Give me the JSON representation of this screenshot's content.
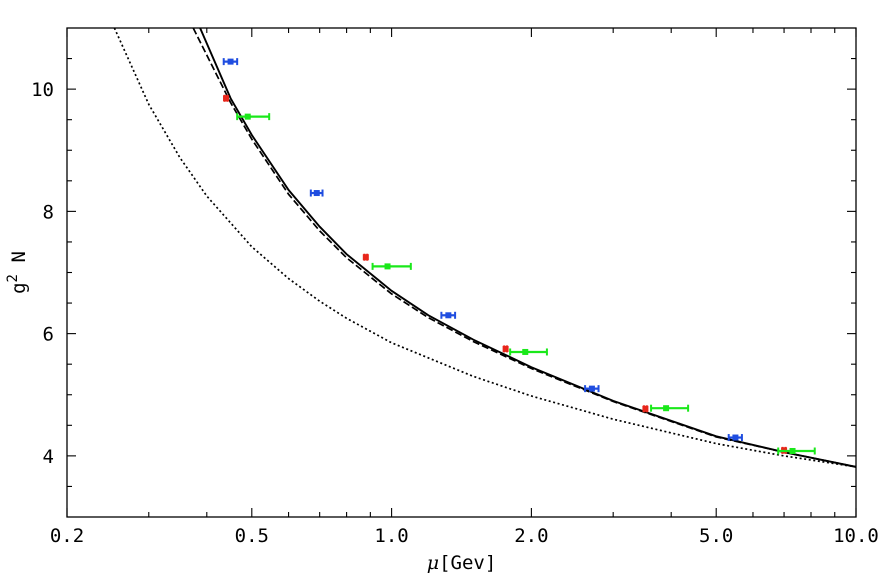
{
  "chart_data": {
    "type": "scatter",
    "title": "",
    "xlabel": {
      "symbol": "μ",
      "bracket_open": "[",
      "unit": "Gev",
      "bracket_close": "]"
    },
    "ylabel": {
      "base": "g",
      "superscript": "2",
      "tail": " N"
    },
    "x_scale": "log",
    "xlim": [
      0.2,
      10.0
    ],
    "ylim": [
      3.0,
      11.0
    ],
    "grid": false,
    "x_ticks": [
      {
        "value": 0.2,
        "label": "0.2"
      },
      {
        "value": 0.5,
        "label": "0.5"
      },
      {
        "value": 1.0,
        "label": "1.0"
      },
      {
        "value": 2.0,
        "label": "2.0"
      },
      {
        "value": 5.0,
        "label": "5.0"
      },
      {
        "value": 10.0,
        "label": "10.0"
      }
    ],
    "x_minor_ticks": [
      0.3,
      0.4,
      0.6,
      0.7,
      0.8,
      0.9,
      3,
      4,
      6,
      7,
      8,
      9
    ],
    "y_ticks": [
      {
        "value": 4,
        "label": "4"
      },
      {
        "value": 6,
        "label": "6"
      },
      {
        "value": 8,
        "label": "8"
      },
      {
        "value": 10,
        "label": "10"
      }
    ],
    "y_minor_ticks": [
      3.5,
      4.5,
      5,
      5.5,
      6.5,
      7,
      7.5,
      8.5,
      9,
      9.5,
      10.5
    ],
    "curves": [
      {
        "style": "solid",
        "color": "#000000",
        "x": [
          0.387,
          0.45,
          0.5,
          0.6,
          0.7,
          0.8,
          1.0,
          1.2,
          1.5,
          2.0,
          3.0,
          5.0,
          7.0,
          10.0
        ],
        "y": [
          11.0,
          9.85,
          9.25,
          8.35,
          7.75,
          7.3,
          6.7,
          6.3,
          5.9,
          5.45,
          4.9,
          4.32,
          4.06,
          3.82
        ]
      },
      {
        "style": "dashed",
        "color": "#000000",
        "x": [
          0.374,
          0.45,
          0.5,
          0.6,
          0.7,
          0.8,
          1.0,
          1.2,
          1.5,
          2.0,
          3.0,
          5.0,
          7.0,
          10.0
        ],
        "y": [
          11.0,
          9.78,
          9.18,
          8.28,
          7.68,
          7.24,
          6.65,
          6.26,
          5.87,
          5.43,
          4.89,
          4.31,
          4.06,
          3.82
        ]
      },
      {
        "style": "dotted",
        "color": "#000000",
        "x": [
          0.253,
          0.3,
          0.35,
          0.4,
          0.5,
          0.6,
          0.7,
          0.8,
          1.0,
          1.5,
          2.0,
          3.0,
          5.0,
          7.0,
          10.0
        ],
        "y": [
          11.0,
          9.75,
          8.88,
          8.25,
          7.42,
          6.9,
          6.53,
          6.25,
          5.85,
          5.3,
          4.98,
          4.6,
          4.2,
          4.0,
          3.82
        ]
      }
    ],
    "series": [
      {
        "color": "#e8261b",
        "marker": "point",
        "points": [
          {
            "x": 0.44,
            "y": 9.85,
            "xerr": [
              0.437,
              0.443
            ]
          },
          {
            "x": 0.88,
            "y": 7.25,
            "xerr": [
              0.874,
              0.886
            ]
          },
          {
            "x": 1.76,
            "y": 5.75,
            "xerr": [
              1.748,
              1.772
            ]
          },
          {
            "x": 3.52,
            "y": 4.77,
            "xerr": [
              3.495,
              3.545
            ]
          },
          {
            "x": 7.0,
            "y": 4.09,
            "xerr": [
              6.95,
              7.05
            ]
          }
        ]
      },
      {
        "color": "#1f4de0",
        "marker": "errorbar",
        "points": [
          {
            "x": 0.45,
            "y": 10.45,
            "xerr": [
              0.435,
              0.465
            ]
          },
          {
            "x": 0.69,
            "y": 8.3,
            "xerr": [
              0.67,
              0.71
            ]
          },
          {
            "x": 1.325,
            "y": 6.3,
            "xerr": [
              1.28,
              1.37
            ]
          },
          {
            "x": 2.7,
            "y": 5.1,
            "xerr": [
              2.61,
              2.79
            ]
          },
          {
            "x": 5.5,
            "y": 4.3,
            "xerr": [
              5.32,
              5.68
            ]
          }
        ]
      },
      {
        "color": "#1ae81a",
        "marker": "errorbar",
        "points": [
          {
            "x": 0.49,
            "y": 9.55,
            "xerr": [
              0.465,
              0.545
            ]
          },
          {
            "x": 0.98,
            "y": 7.1,
            "xerr": [
              0.91,
              1.1
            ]
          },
          {
            "x": 1.94,
            "y": 5.7,
            "xerr": [
              1.8,
              2.16
            ]
          },
          {
            "x": 3.9,
            "y": 4.78,
            "xerr": [
              3.62,
              4.35
            ]
          },
          {
            "x": 7.3,
            "y": 4.08,
            "xerr": [
              6.8,
              8.15
            ]
          }
        ]
      }
    ]
  }
}
